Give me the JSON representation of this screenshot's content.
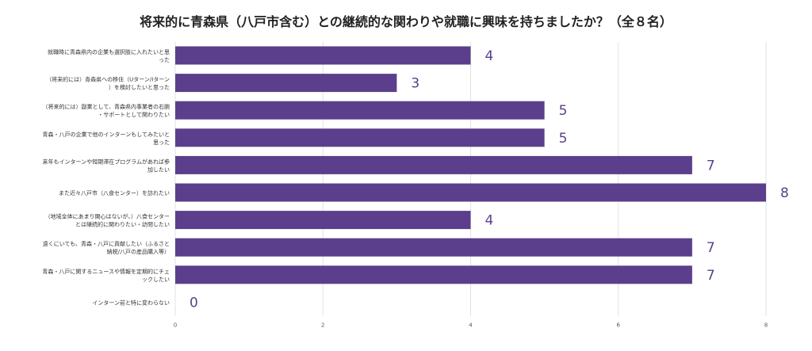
{
  "chart_data": {
    "type": "bar",
    "orientation": "horizontal",
    "title": "将来的に青森県（八戸市含む）との継続的な関わりや就職に興味を持ちましたか？（全８名）",
    "categories": [
      [
        "就職時に青森県内の企業も選択肢に入れたいと思",
        "った"
      ],
      [
        "（将来的には）青森県への移住（Uターン/Iターン",
        "）を検討したいと思った"
      ],
      [
        "（将来的には）副業として、青森県内事業者の右腕",
        "・サポートとして関わりたい"
      ],
      [
        "青森・八戸の企業で他のインターンもしてみたいと",
        "思った"
      ],
      [
        "来年もインターンや短期滞在プログラムがあれば参",
        "加したい"
      ],
      [
        "また近々八戸市（八食センター）を訪れたい"
      ],
      [
        "（地域全体にあまり関心はないが、）八食センター",
        "とは継続的に関わりたい・訪問したい"
      ],
      [
        "遠くにいても、青森・八戸に貢献したい（ふるさと",
        "納税/八戸の産品購入等）"
      ],
      [
        "青森・八戸に関するニュースや情報を定期的にチェ",
        "ックしたい"
      ],
      [
        "インターン前と特に変わらない"
      ]
    ],
    "values": [
      4,
      3,
      5,
      5,
      7,
      8,
      4,
      7,
      7,
      0
    ],
    "xlim": [
      0,
      8
    ],
    "xticks": [
      0,
      2,
      4,
      6,
      8
    ],
    "grid": true,
    "colors": {
      "bar": "#5b3f8c",
      "value_label": "#5b3f8c",
      "grid": "#e2e2e2"
    }
  }
}
